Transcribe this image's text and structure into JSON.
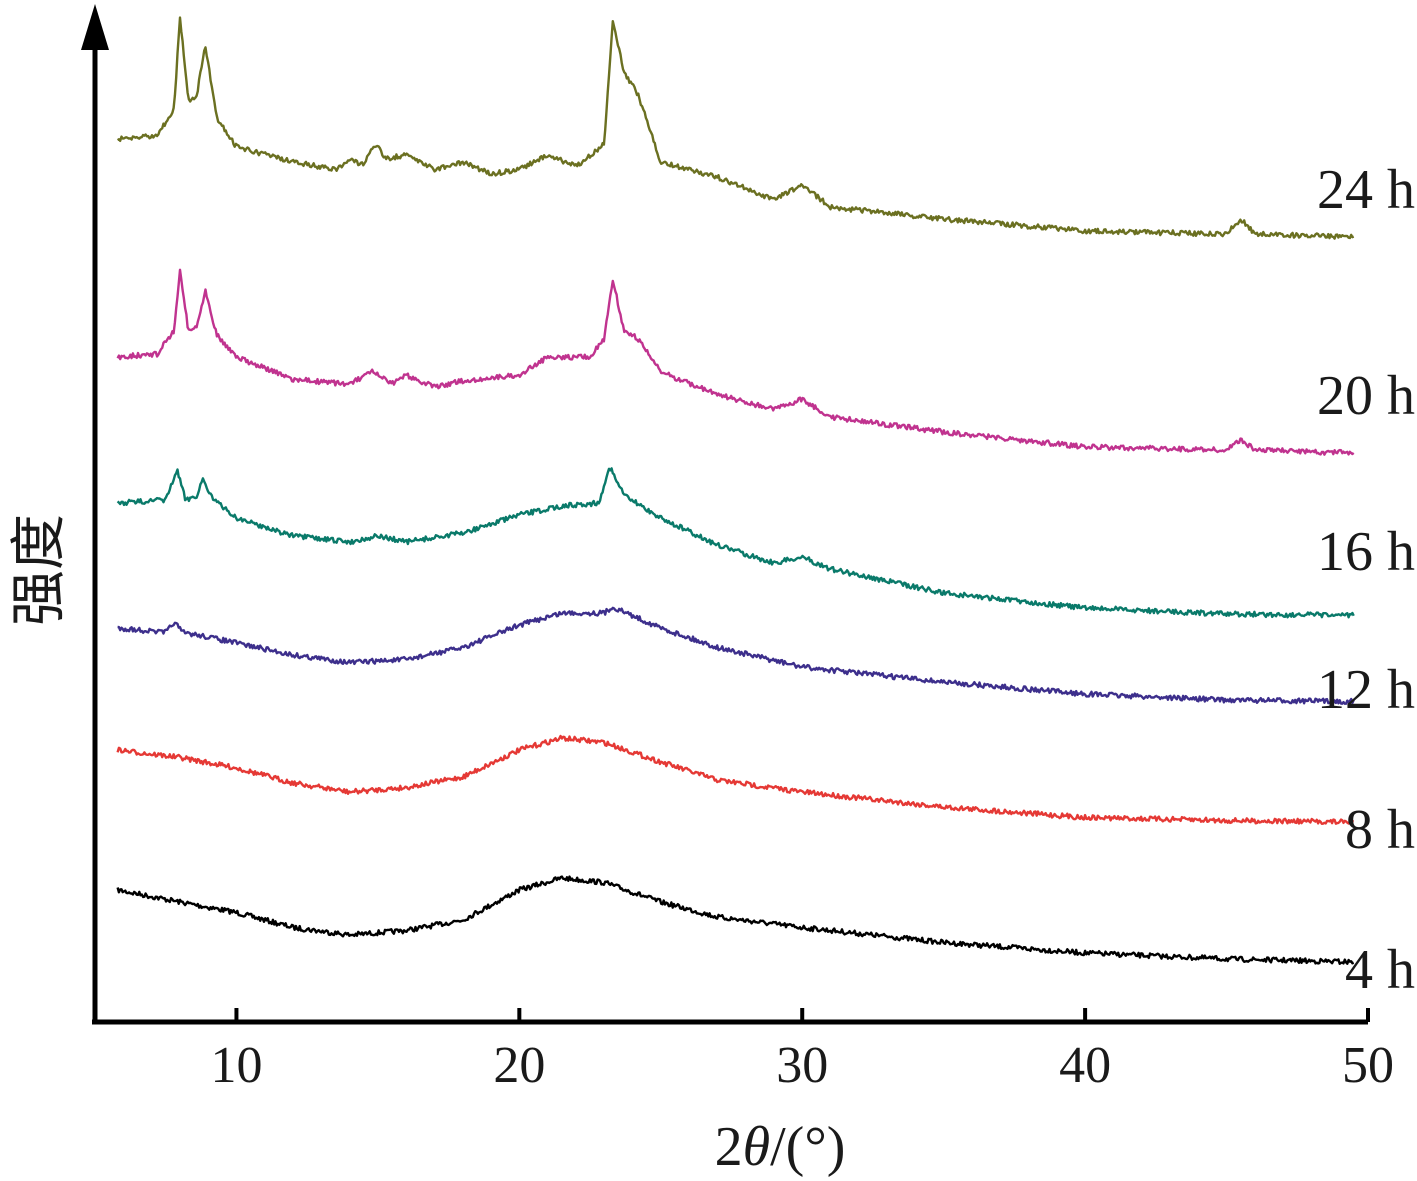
{
  "chart_data": {
    "type": "line",
    "title": "",
    "xlabel_prefix": "2",
    "xlabel_theta": "θ",
    "xlabel_suffix": "/(°)",
    "ylabel": "强度",
    "xlim": [
      5,
      50
    ],
    "x_ticks": [
      "10",
      "20",
      "30",
      "40",
      "50"
    ],
    "grid": false,
    "series": [
      {
        "name": "4 h",
        "color": "#000000",
        "points": [
          [
            5.8,
            0.3
          ],
          [
            8,
            0.22
          ],
          [
            10,
            0.15
          ],
          [
            12,
            0.05
          ],
          [
            14,
            0.0
          ],
          [
            16,
            0.03
          ],
          [
            18,
            0.1
          ],
          [
            20,
            0.3
          ],
          [
            21.5,
            0.38
          ],
          [
            23,
            0.35
          ],
          [
            25,
            0.22
          ],
          [
            27,
            0.12
          ],
          [
            30,
            0.05
          ],
          [
            35,
            -0.05
          ],
          [
            40,
            -0.12
          ],
          [
            45,
            -0.16
          ],
          [
            49.5,
            -0.18
          ]
        ]
      },
      {
        "name": "8 h",
        "color": "#e53935",
        "points": [
          [
            5.8,
            0.3
          ],
          [
            8,
            0.25
          ],
          [
            10,
            0.18
          ],
          [
            12,
            0.08
          ],
          [
            14,
            0.02
          ],
          [
            16,
            0.05
          ],
          [
            18,
            0.12
          ],
          [
            20,
            0.3
          ],
          [
            21.5,
            0.38
          ],
          [
            23,
            0.35
          ],
          [
            25,
            0.22
          ],
          [
            27,
            0.1
          ],
          [
            30,
            0.02
          ],
          [
            35,
            -0.08
          ],
          [
            40,
            -0.15
          ],
          [
            45,
            -0.17
          ],
          [
            49.5,
            -0.18
          ]
        ]
      },
      {
        "name": "12 h",
        "color": "#3d2f8c",
        "points": [
          [
            5.8,
            0.18
          ],
          [
            7.5,
            0.15
          ],
          [
            7.8,
            0.22
          ],
          [
            8.1,
            0.15
          ],
          [
            9,
            0.12
          ],
          [
            10,
            0.08
          ],
          [
            12,
            0.0
          ],
          [
            14,
            -0.05
          ],
          [
            16,
            -0.03
          ],
          [
            18,
            0.05
          ],
          [
            20,
            0.2
          ],
          [
            21.5,
            0.28
          ],
          [
            23,
            0.28
          ],
          [
            23.3,
            0.32
          ],
          [
            25,
            0.18
          ],
          [
            27,
            0.05
          ],
          [
            30,
            -0.08
          ],
          [
            35,
            -0.18
          ],
          [
            40,
            -0.26
          ],
          [
            45,
            -0.3
          ],
          [
            49.5,
            -0.31
          ]
        ]
      },
      {
        "name": "16 h",
        "color": "#0a7a6a",
        "points": [
          [
            5.8,
            0.1
          ],
          [
            7.5,
            0.12
          ],
          [
            7.9,
            0.32
          ],
          [
            8.2,
            0.12
          ],
          [
            8.6,
            0.15
          ],
          [
            8.8,
            0.26
          ],
          [
            9.2,
            0.12
          ],
          [
            10,
            0.0
          ],
          [
            12,
            -0.12
          ],
          [
            14,
            -0.16
          ],
          [
            15,
            -0.12
          ],
          [
            16,
            -0.16
          ],
          [
            18,
            -0.1
          ],
          [
            20,
            0.02
          ],
          [
            21.5,
            0.08
          ],
          [
            22.8,
            0.1
          ],
          [
            23.2,
            0.34
          ],
          [
            23.7,
            0.15
          ],
          [
            25,
            0.0
          ],
          [
            27,
            -0.18
          ],
          [
            29,
            -0.3
          ],
          [
            30,
            -0.26
          ],
          [
            31,
            -0.34
          ],
          [
            35,
            -0.5
          ],
          [
            40,
            -0.6
          ],
          [
            45,
            -0.64
          ],
          [
            49.5,
            -0.65
          ]
        ]
      },
      {
        "name": "20 h",
        "color": "#c0338f",
        "points": [
          [
            5.8,
            0.1
          ],
          [
            7.2,
            0.12
          ],
          [
            7.8,
            0.28
          ],
          [
            8,
            0.68
          ],
          [
            8.3,
            0.28
          ],
          [
            8.6,
            0.3
          ],
          [
            8.9,
            0.55
          ],
          [
            9.3,
            0.25
          ],
          [
            10,
            0.1
          ],
          [
            12,
            -0.05
          ],
          [
            14,
            -0.08
          ],
          [
            14.8,
            0.0
          ],
          [
            15.5,
            -0.08
          ],
          [
            16,
            -0.02
          ],
          [
            17,
            -0.1
          ],
          [
            18,
            -0.06
          ],
          [
            20,
            -0.02
          ],
          [
            21,
            0.1
          ],
          [
            22.5,
            0.1
          ],
          [
            23,
            0.22
          ],
          [
            23.3,
            0.62
          ],
          [
            23.7,
            0.28
          ],
          [
            24.2,
            0.22
          ],
          [
            25,
            0.0
          ],
          [
            27,
            -0.15
          ],
          [
            29,
            -0.25
          ],
          [
            30,
            -0.18
          ],
          [
            31,
            -0.3
          ],
          [
            35,
            -0.4
          ],
          [
            40,
            -0.5
          ],
          [
            45,
            -0.52
          ],
          [
            45.5,
            -0.45
          ],
          [
            46,
            -0.52
          ],
          [
            49.5,
            -0.54
          ]
        ]
      },
      {
        "name": "24 h",
        "color": "#6b7021",
        "points": [
          [
            5.8,
            0.15
          ],
          [
            7.2,
            0.18
          ],
          [
            7.8,
            0.35
          ],
          [
            8,
            0.98
          ],
          [
            8.3,
            0.4
          ],
          [
            8.6,
            0.45
          ],
          [
            8.9,
            0.78
          ],
          [
            9.3,
            0.3
          ],
          [
            10,
            0.1
          ],
          [
            12,
            0.0
          ],
          [
            13.5,
            -0.05
          ],
          [
            14,
            0.02
          ],
          [
            14.5,
            -0.02
          ],
          [
            14.9,
            0.12
          ],
          [
            15.3,
            0.02
          ],
          [
            16,
            0.05
          ],
          [
            17,
            -0.05
          ],
          [
            18,
            0.0
          ],
          [
            19,
            -0.08
          ],
          [
            20,
            -0.05
          ],
          [
            21,
            0.05
          ],
          [
            22,
            -0.03
          ],
          [
            23,
            0.12
          ],
          [
            23.3,
            0.95
          ],
          [
            23.7,
            0.6
          ],
          [
            24.2,
            0.45
          ],
          [
            25,
            0.0
          ],
          [
            27,
            -0.1
          ],
          [
            29,
            -0.25
          ],
          [
            30,
            -0.15
          ],
          [
            31,
            -0.3
          ],
          [
            35,
            -0.38
          ],
          [
            40,
            -0.46
          ],
          [
            45,
            -0.48
          ],
          [
            45.5,
            -0.38
          ],
          [
            46,
            -0.48
          ],
          [
            49.5,
            -0.5
          ]
        ]
      }
    ]
  }
}
